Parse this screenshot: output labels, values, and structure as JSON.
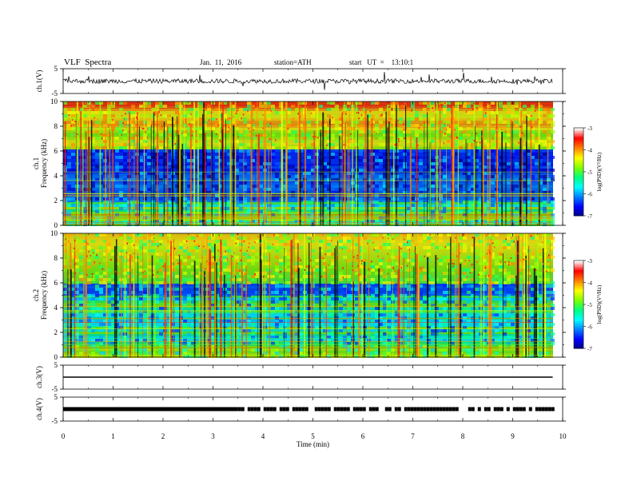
{
  "header": {
    "title": "VLF  Spectra",
    "date": "Jan.  11,  2016",
    "station": "station=ATH",
    "start": "start   UT  =    13:10:1"
  },
  "colors": {
    "background": "#ffffff",
    "axis": "#000000",
    "colormap": [
      "#000080",
      "#0000ff",
      "#0080ff",
      "#00ffff",
      "#00ff80",
      "#80ff00",
      "#ffff00",
      "#ff8000",
      "#ff0000",
      "#ffffff"
    ]
  },
  "chart_data": [
    {
      "type": "line",
      "panel": "ch1-waveform",
      "ylabel": "ch.1(V)",
      "yticks": [
        "5",
        "-5"
      ],
      "ylim": [
        -5,
        5
      ],
      "xlim": [
        0,
        10
      ],
      "baseline": 0,
      "noise_amplitude": 0.9,
      "spike_amplitude": 3.5
    },
    {
      "type": "heatmap",
      "panel": "ch1-spectrogram",
      "ylabel": "ch.1",
      "ylabel2": "Frequency  (kHz)",
      "yticks": [
        "0",
        "2",
        "4",
        "6",
        "8",
        "10"
      ],
      "ylim": [
        0,
        10
      ],
      "xlim": [
        0,
        10
      ],
      "data_end_min": 9.8,
      "colorbar": {
        "label": "log(PSD)(V²/Hz)",
        "ticks": [
          "-3",
          "-4",
          "-5",
          "-6",
          "-7"
        ],
        "range": [
          -7,
          -3
        ]
      }
    },
    {
      "type": "heatmap",
      "panel": "ch2-spectrogram",
      "ylabel": "ch.2",
      "ylabel2": "Frequency  (kHz)",
      "yticks": [
        "0",
        "2",
        "4",
        "6",
        "8",
        "10"
      ],
      "ylim": [
        0,
        10
      ],
      "xlim": [
        0,
        10
      ],
      "data_end_min": 9.8,
      "colorbar": {
        "label": "log(PSD)(V²/Hz)",
        "ticks": [
          "-3",
          "-4",
          "-5",
          "-6",
          "-7"
        ],
        "range": [
          -7,
          -3
        ]
      }
    },
    {
      "type": "line",
      "panel": "ch3-waveform",
      "ylabel": "ch.3(V)",
      "yticks": [
        "5",
        "-5"
      ],
      "ylim": [
        -5,
        5
      ],
      "xlim": [
        0,
        10
      ],
      "baseline": 0,
      "noise_amplitude": 0.1
    },
    {
      "type": "line",
      "panel": "ch4-waveform",
      "ylabel": "ch.4(V)",
      "yticks": [
        "5",
        "-5"
      ],
      "ylim": [
        -5,
        5
      ],
      "xlim": [
        0,
        10
      ],
      "baseline": 0,
      "noise_amplitude": 0.4
    }
  ],
  "xaxis": {
    "label": "Time  (min)",
    "ticks": [
      "0",
      "1",
      "2",
      "3",
      "4",
      "5",
      "6",
      "7",
      "8",
      "9",
      "10"
    ],
    "range": [
      0,
      10
    ]
  }
}
